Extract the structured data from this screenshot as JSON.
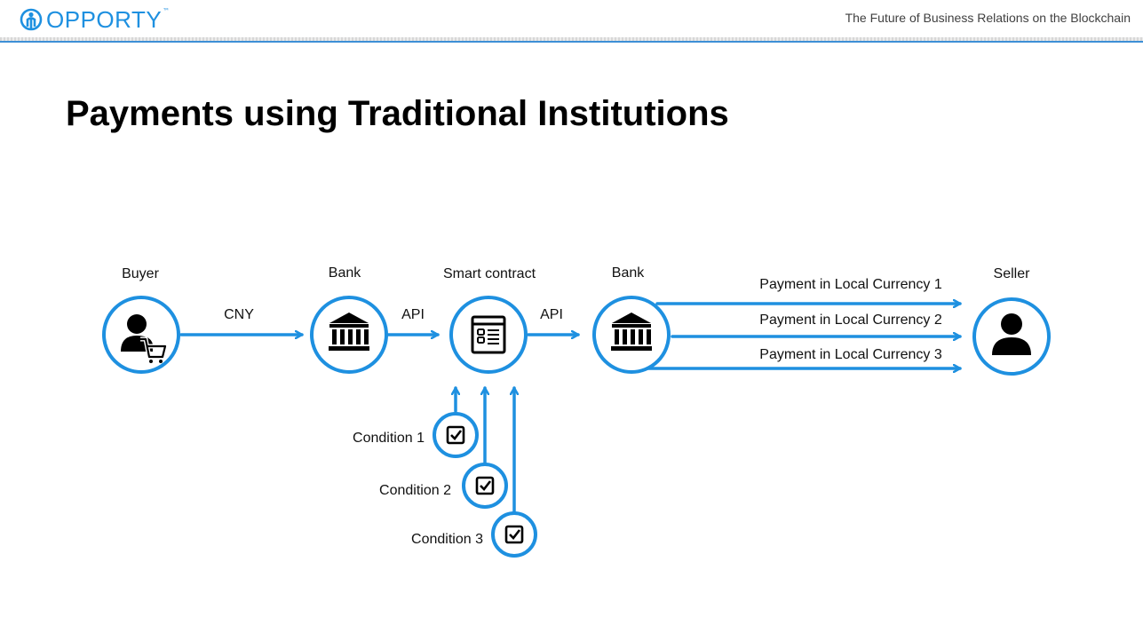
{
  "header": {
    "logo_text": "OPPORTY",
    "logo_tm": "™",
    "tagline": "The Future of Business Relations on the Blockchain"
  },
  "title": "Payments using Traditional Institutions",
  "colors": {
    "accent": "#1e90e0",
    "text": "#000000"
  },
  "nodes": {
    "buyer": {
      "label": "Buyer",
      "icon": "buyer-cart-icon"
    },
    "bank_left": {
      "label": "Bank",
      "icon": "bank-icon"
    },
    "smart_contract": {
      "label": "Smart contract",
      "icon": "contract-document-icon"
    },
    "bank_right": {
      "label": "Bank",
      "icon": "bank-icon"
    },
    "seller": {
      "label": "Seller",
      "icon": "person-icon"
    }
  },
  "edges": {
    "buyer_to_bank": "CNY",
    "bank_to_contract": "API",
    "contract_to_bank": "API",
    "payments": [
      "Payment in Local Currency 1",
      "Payment in Local Currency 2",
      "Payment in Local Currency 3"
    ]
  },
  "conditions": [
    "Condition 1",
    "Condition 2",
    "Condition 3"
  ]
}
